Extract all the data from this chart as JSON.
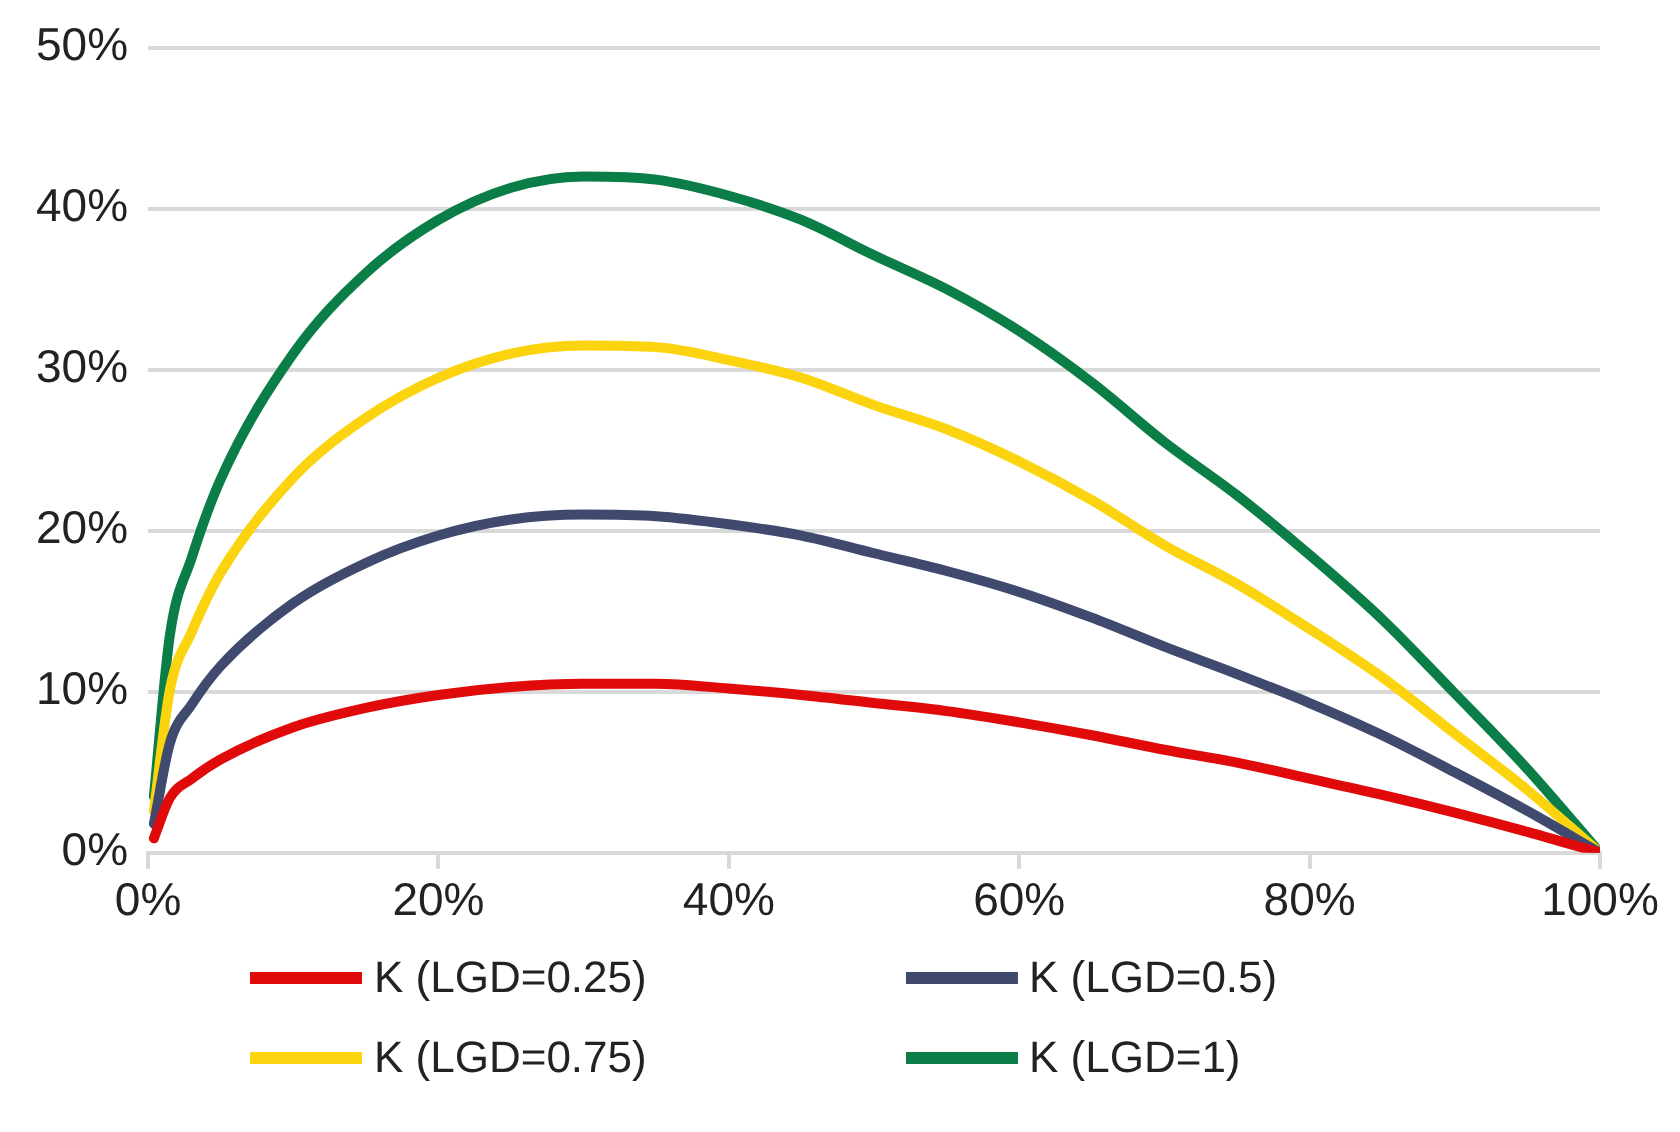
{
  "chart_data": {
    "type": "line",
    "x": [
      0.4,
      1.5,
      3,
      5,
      10,
      15,
      20,
      25,
      30,
      35,
      40,
      45,
      50,
      55,
      60,
      65,
      70,
      75,
      80,
      85,
      90,
      95,
      100
    ],
    "series": [
      {
        "name": "K (LGD=0.25)",
        "color": "#e00a0a",
        "values": [
          0.9,
          3.4,
          4.6,
          5.8,
          7.8,
          9,
          9.8,
          10.3,
          10.5,
          10.5,
          10.2,
          9.8,
          9.3,
          8.8,
          8.1,
          7.3,
          6.4,
          5.6,
          4.6,
          3.6,
          2.5,
          1.3,
          0
        ]
      },
      {
        "name": "K (LGD=0.5)",
        "color": "#404a6e",
        "values": [
          1.8,
          6.8,
          9.2,
          11.6,
          15.5,
          18,
          19.7,
          20.7,
          21,
          20.9,
          20.4,
          19.7,
          18.6,
          17.5,
          16.2,
          14.6,
          12.8,
          11.1,
          9.3,
          7.3,
          5,
          2.6,
          0
        ]
      },
      {
        "name": "K (LGD=0.75)",
        "color": "#fbd30f",
        "values": [
          2.6,
          10.1,
          13.7,
          17.4,
          23.3,
          27,
          29.5,
          31,
          31.5,
          31.4,
          30.6,
          29.5,
          27.8,
          26.3,
          24.3,
          21.9,
          19.1,
          16.7,
          13.9,
          10.9,
          7.4,
          3.9,
          0
        ]
      },
      {
        "name": "K (LGD=1)",
        "color": "#0b7d46",
        "values": [
          3.5,
          13.5,
          18.3,
          23.2,
          31,
          36,
          39.3,
          41.3,
          42,
          41.8,
          40.8,
          39.3,
          37.1,
          35,
          32.4,
          29.2,
          25.5,
          22.2,
          18.5,
          14.5,
          9.9,
          5.2,
          0
        ]
      }
    ],
    "xlim": [
      0,
      100
    ],
    "xticks": [
      {
        "value": 0,
        "label": "0%"
      },
      {
        "value": 20,
        "label": "20%"
      },
      {
        "value": 40,
        "label": "40%"
      },
      {
        "value": 60,
        "label": "60%"
      },
      {
        "value": 80,
        "label": "80%"
      },
      {
        "value": 100,
        "label": "100%"
      }
    ],
    "ylim": [
      0,
      50
    ],
    "yticks": [
      {
        "value": 0,
        "label": "0%"
      },
      {
        "value": 10,
        "label": "10%"
      },
      {
        "value": 20,
        "label": "20%"
      },
      {
        "value": 30,
        "label": "30%"
      },
      {
        "value": 40,
        "label": "40%"
      },
      {
        "value": 50,
        "label": "50%"
      }
    ],
    "grid": "y",
    "legend": "bottom",
    "marker": "none",
    "line_style": "solid"
  }
}
